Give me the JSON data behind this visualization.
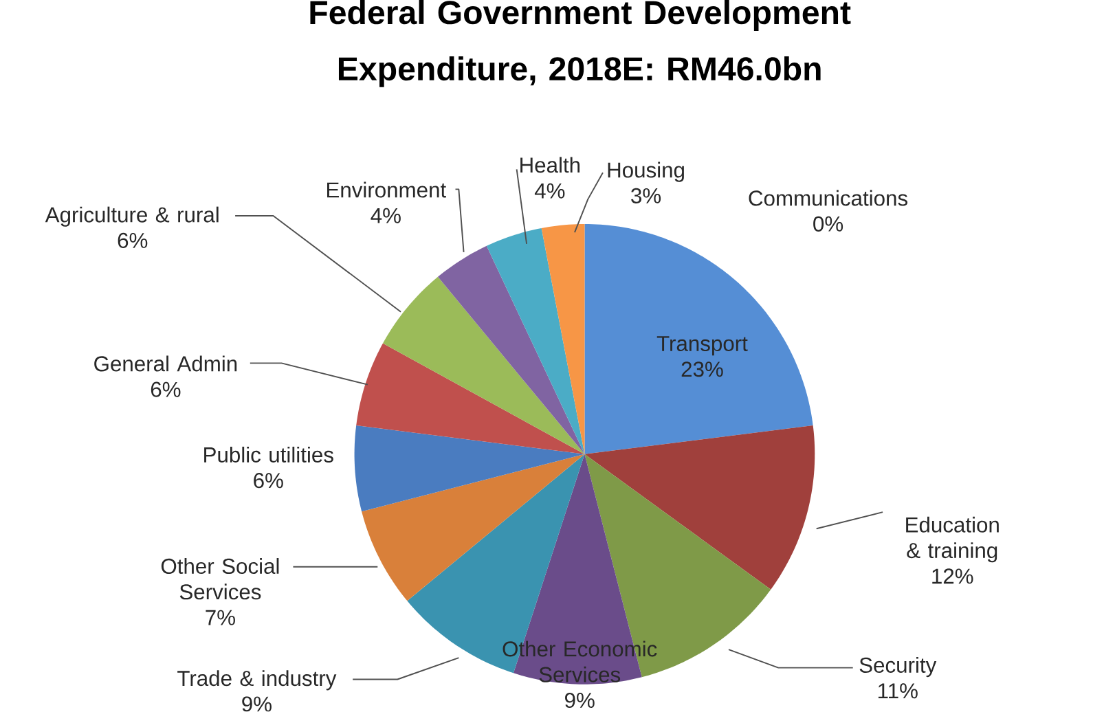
{
  "chart_data": {
    "type": "pie",
    "title": "Federal Government Development Expenditure, 2018E: RM46.0bn",
    "categories": [
      "Transport",
      "Education & training",
      "Security",
      "Other Economic Services",
      "Trade & industry",
      "Other Social Services",
      "Public utilities",
      "General Admin",
      "Agriculture & rural",
      "Environment",
      "Health",
      "Housing",
      "Communications"
    ],
    "values": [
      23,
      12,
      11,
      9,
      9,
      7,
      6,
      6,
      6,
      4,
      4,
      3,
      0
    ],
    "value_labels": [
      "23%",
      "12%",
      "11%",
      "9%",
      "9%",
      "7%",
      "6%",
      "6%",
      "6%",
      "4%",
      "4%",
      "3%",
      "0%"
    ],
    "colors": [
      "#558ed5",
      "#a0403c",
      "#7f9a48",
      "#6a4c8a",
      "#3a93b0",
      "#d9803a",
      "#4a7cc0",
      "#c0504d",
      "#9bbb59",
      "#8064a2",
      "#4bacc6",
      "#f79646",
      "#a6a6a6"
    ]
  }
}
